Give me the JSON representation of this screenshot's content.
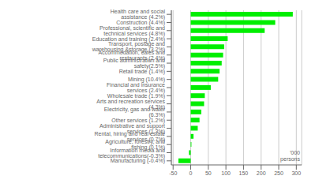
{
  "chart_data": {
    "type": "bar",
    "orientation": "horizontal",
    "categories": [
      "Health care and social assistance  (4.2%)",
      "Construction (4.4%)",
      "Professional, scientific and technical services  (4.8%)",
      "Education and training (2.4%)",
      "Transport, postage and warehousing &storage  (3.2%)",
      "Accommodation, cafes and restaurants (2.4%)",
      "Public administration and safety(2.5%)",
      "Retail trade (1.4%)",
      "Mining (10.4%)",
      "Financial and insurance services (2.4%)",
      "Wholesale trade (1.9%)",
      "Arts and recreation services (4.3%)",
      "Electricity, gas and water  (6.3%)",
      "Other services (1.2%)",
      "Administrative and support services (1.3%)",
      "Rental, hiring and real estate services (0.7%)",
      "Agriculture, forestry, and fishing (0.1%)",
      "Information media and telecommunications(-0.3%)",
      "Manufacturing  (-0.4%)"
    ],
    "values": [
      290,
      240,
      210,
      105,
      95,
      92,
      88,
      82,
      78,
      57,
      40,
      38,
      30,
      25,
      20,
      8,
      2,
      -5,
      -35
    ],
    "color": "#00ee00",
    "xlim": [
      -55,
      315
    ],
    "xticks": [
      -50,
      0,
      50,
      100,
      150,
      200,
      250,
      300
    ],
    "grid": true,
    "annotation": "'000\npersons"
  }
}
